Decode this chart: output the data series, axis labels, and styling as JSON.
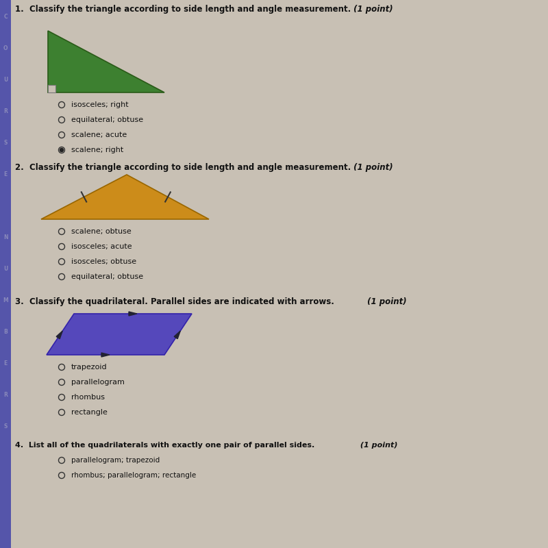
{
  "bg_color": "#c8c0b4",
  "text_color": "#111111",
  "title_fontsize": 8.5,
  "option_fontsize": 8.0,
  "q1_title_main": "1.  Classify the triangle according to side length and angle measurement.",
  "q1_title_italic": " (1 point)",
  "q2_title_main": "2.  Classify the triangle according to side length and angle measurement.",
  "q2_title_italic": " (1 point)",
  "q3_title_main": "3.  Classify the quadrilateral. Parallel sides are indicated with arrows.",
  "q3_title_italic": " (1 point)",
  "q4_title_main": "4.  List all of the quadrilaterals with exactly one pair of parallel sides.",
  "q4_title_italic": " (1 point)",
  "q1_options": [
    "isosceles; right",
    "equilateral; obtuse",
    "scalene; acute",
    "scalene; right"
  ],
  "q1_selected": 3,
  "tri1_color": "#3d8030",
  "tri1_edge": "#2a5a18",
  "q2_options": [
    "scalene; obtuse",
    "isosceles; acute",
    "isosceles; obtuse",
    "equilateral; obtuse"
  ],
  "q2_selected": -1,
  "tri2_color": "#cc8c1a",
  "tri2_edge": "#996600",
  "q3_options": [
    "trapezoid",
    "parallelogram",
    "rhombus",
    "rectangle"
  ],
  "q3_selected": -1,
  "para_color": "#5548bb",
  "para_edge": "#3322aa",
  "q4_options": [
    "parallelogram; trapezoid",
    "rhombus; parallelogram; rectangle"
  ],
  "q4_selected": -1,
  "left_bar_color": "#5555aa",
  "side_label_color": "#8888bb",
  "side_labels": [
    "C",
    "O",
    "U",
    "R",
    "S",
    "E",
    "",
    "N",
    "U",
    "M",
    "B",
    "E",
    "R",
    "S"
  ]
}
